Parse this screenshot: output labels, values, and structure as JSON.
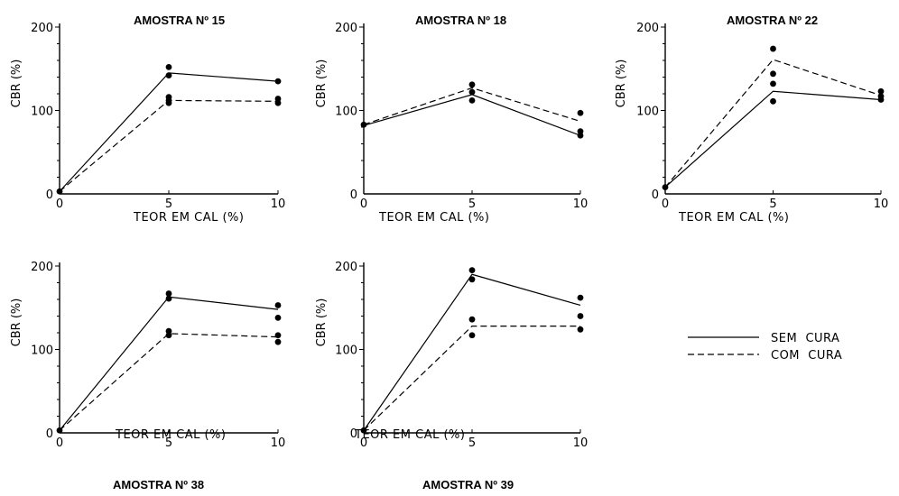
{
  "legend": [
    {
      "label": "SEM  CURA",
      "style": "solid"
    },
    {
      "label": "COM  CURA",
      "style": "dashed"
    }
  ],
  "chart_data": [
    {
      "type": "line",
      "title": "AMOSTRA Nº 15",
      "xlabel": "TEOR  EM  CAL  (%)",
      "ylabel": "CBR  (%)",
      "x": [
        0,
        5,
        10
      ],
      "xlim": [
        0,
        10
      ],
      "ylim": [
        0,
        200
      ],
      "xticks": [
        "0",
        "5",
        "10"
      ],
      "yticks": [
        "0",
        "100",
        "200"
      ],
      "series": [
        {
          "name": "SEM  CURA",
          "style": "solid",
          "values": [
            3,
            145,
            135
          ]
        },
        {
          "name": "COM  CURA",
          "style": "dashed",
          "values": [
            3,
            112,
            111
          ]
        }
      ],
      "points": [
        [
          0,
          3
        ],
        [
          5,
          152
        ],
        [
          5,
          142
        ],
        [
          5,
          116
        ],
        [
          5,
          112
        ],
        [
          5,
          109
        ],
        [
          10,
          135
        ],
        [
          10,
          114
        ],
        [
          10,
          109
        ]
      ]
    },
    {
      "type": "line",
      "title": "AMOSTRA Nº 18",
      "xlabel": "TEOR  EM  CAL  (%)",
      "ylabel": "CBR  (%)",
      "x": [
        0,
        5,
        10
      ],
      "xlim": [
        0,
        10
      ],
      "ylim": [
        0,
        200
      ],
      "xticks": [
        "0",
        "5",
        "10"
      ],
      "yticks": [
        "0",
        "100",
        "200"
      ],
      "series": [
        {
          "name": "SEM  CURA",
          "style": "solid",
          "values": [
            82,
            119,
            70
          ]
        },
        {
          "name": "COM  CURA",
          "style": "dashed",
          "values": [
            83,
            127,
            87
          ]
        }
      ],
      "points": [
        [
          0,
          83
        ],
        [
          5,
          131
        ],
        [
          5,
          122
        ],
        [
          5,
          112
        ],
        [
          10,
          97
        ],
        [
          10,
          75
        ],
        [
          10,
          70
        ]
      ]
    },
    {
      "type": "line",
      "title": "AMOSTRA Nº 22",
      "xlabel": "TEOR  EM  CAL  (%)",
      "ylabel": "CBR  (%)",
      "x": [
        0,
        5,
        10
      ],
      "xlim": [
        0,
        10
      ],
      "ylim": [
        0,
        200
      ],
      "xticks": [
        "0",
        "5",
        "10"
      ],
      "yticks": [
        "0",
        "100",
        "200"
      ],
      "series": [
        {
          "name": "SEM  CURA",
          "style": "solid",
          "values": [
            8,
            123,
            113
          ]
        },
        {
          "name": "COM  CURA",
          "style": "dashed",
          "values": [
            8,
            161,
            118
          ]
        }
      ],
      "points": [
        [
          0,
          8
        ],
        [
          5,
          174
        ],
        [
          5,
          144
        ],
        [
          5,
          132
        ],
        [
          5,
          111
        ],
        [
          10,
          123
        ],
        [
          10,
          117
        ],
        [
          10,
          113
        ]
      ]
    },
    {
      "type": "line",
      "title": "AMOSTRA Nº 38",
      "xlabel": "TEOR  EM  CAL  (%)",
      "ylabel": "CBR  (%)",
      "x": [
        0,
        5,
        10
      ],
      "xlim": [
        0,
        10
      ],
      "ylim": [
        0,
        200
      ],
      "xticks": [
        "0",
        "5",
        "10"
      ],
      "yticks": [
        "0",
        "100",
        "200"
      ],
      "series": [
        {
          "name": "SEM  CURA",
          "style": "solid",
          "values": [
            3,
            163,
            148
          ]
        },
        {
          "name": "COM  CURA",
          "style": "dashed",
          "values": [
            3,
            119,
            115
          ]
        }
      ],
      "points": [
        [
          0,
          3
        ],
        [
          5,
          167
        ],
        [
          5,
          161
        ],
        [
          5,
          122
        ],
        [
          5,
          117
        ],
        [
          10,
          153
        ],
        [
          10,
          138
        ],
        [
          10,
          117
        ],
        [
          10,
          109
        ]
      ]
    },
    {
      "type": "line",
      "title": "AMOSTRA Nº 39",
      "xlabel": "TEOR  EM  CAL  (%)",
      "ylabel": "CBR  (%)",
      "x": [
        0,
        5,
        10
      ],
      "xlim": [
        0,
        10
      ],
      "ylim": [
        0,
        200
      ],
      "xticks": [
        "0",
        "5",
        "10"
      ],
      "yticks": [
        "0",
        "100",
        "200"
      ],
      "series": [
        {
          "name": "SEM  CURA",
          "style": "solid",
          "values": [
            3,
            190,
            153
          ]
        },
        {
          "name": "COM  CURA",
          "style": "dashed",
          "values": [
            3,
            128,
            128
          ]
        }
      ],
      "points": [
        [
          0,
          3
        ],
        [
          5,
          195
        ],
        [
          5,
          184
        ],
        [
          5,
          136
        ],
        [
          5,
          117
        ],
        [
          10,
          162
        ],
        [
          10,
          140
        ],
        [
          10,
          124
        ]
      ]
    }
  ]
}
